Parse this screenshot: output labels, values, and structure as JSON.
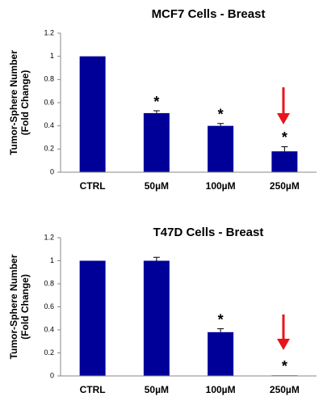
{
  "chart_data": [
    {
      "type": "bar",
      "title": "MCF7 Cells - Breast",
      "y_label": [
        "Tumor-Sphere Number",
        "(Fold Change)"
      ],
      "categories": [
        "CTRL",
        "50µM",
        "100µM",
        "250µM"
      ],
      "values": [
        1.0,
        0.51,
        0.4,
        0.18
      ],
      "errors": [
        null,
        0.02,
        0.02,
        0.04
      ],
      "annotations": [
        null,
        "*",
        "*",
        "*"
      ],
      "color": "#000099",
      "ylim": [
        0,
        1.2
      ],
      "yticks": [
        0,
        0.2,
        0.4,
        0.6,
        0.8,
        1,
        1.2
      ]
    },
    {
      "type": "bar",
      "title": "T47D Cells - Breast",
      "y_label": [
        "Tumor-Sphere Number",
        "(Fold Change)"
      ],
      "categories": [
        "CTRL",
        "50µM",
        "100µM",
        "250µM"
      ],
      "values": [
        1.0,
        1.0,
        0.38,
        0.005
      ],
      "errors": [
        null,
        0.03,
        0.03,
        null
      ],
      "annotations": [
        null,
        null,
        "*",
        "*"
      ],
      "color": "#000099",
      "ylim": [
        0,
        1.2
      ],
      "yticks": [
        0,
        0.2,
        0.4,
        0.6,
        0.8,
        1,
        1.2
      ]
    }
  ]
}
